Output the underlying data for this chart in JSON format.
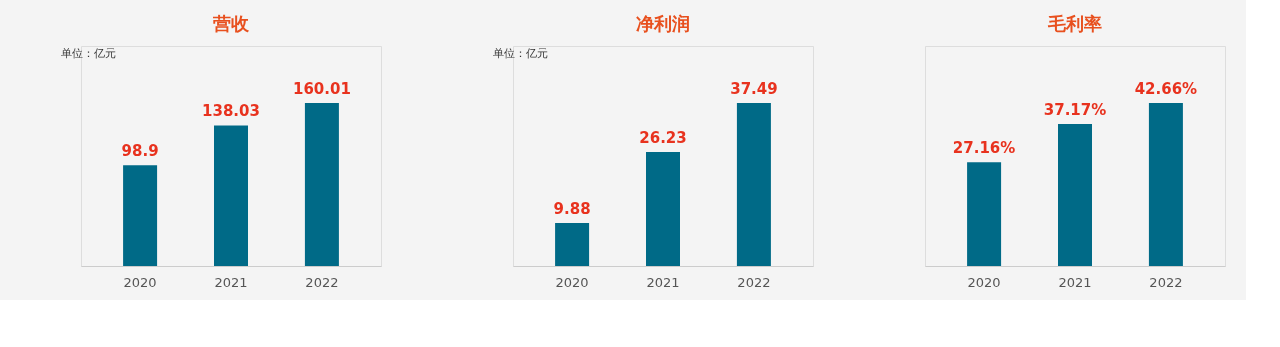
{
  "chart_data": [
    {
      "type": "bar",
      "title": "营收",
      "annotations": [
        "单位：亿元"
      ],
      "categories": [
        "2020",
        "2021",
        "2022"
      ],
      "values": [
        98.9,
        138.03,
        160.01
      ],
      "color": "#006a87",
      "data_labels": true
    },
    {
      "type": "bar",
      "title": "净利润",
      "annotations": [
        "单位：亿元"
      ],
      "categories": [
        "2020",
        "2021",
        "2022"
      ],
      "values": [
        9.88,
        26.23,
        37.49
      ],
      "color": "#006a87",
      "data_labels": true
    },
    {
      "type": "bar",
      "title": "毛利率",
      "categories": [
        "2020",
        "2021",
        "2022"
      ],
      "values": [
        27.16,
        37.17,
        42.66
      ],
      "value_labels": [
        "27.16%",
        "37.17%",
        "42.66%"
      ],
      "color": "#006a87"
    }
  ]
}
